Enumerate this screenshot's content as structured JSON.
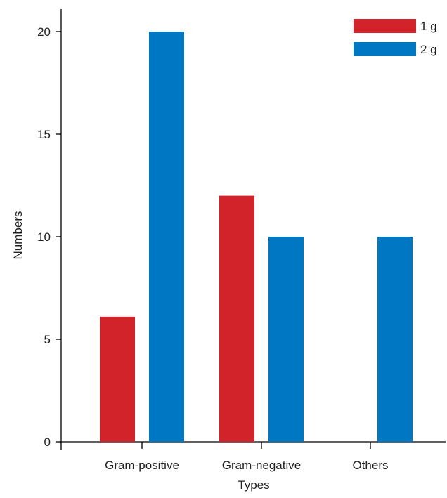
{
  "chart_data": {
    "type": "bar",
    "title": "",
    "xlabel": "Types",
    "ylabel": "Numbers",
    "categories": [
      "Gram-positive",
      "Gram-negative",
      "Others"
    ],
    "series": [
      {
        "name": "1 g",
        "color": "#d2232a",
        "values": [
          6.1,
          12,
          0
        ]
      },
      {
        "name": "2 g",
        "color": "#0077c2",
        "values": [
          20,
          10,
          10
        ]
      }
    ],
    "ylim": [
      0,
      20
    ],
    "yticks": [
      0,
      5,
      10,
      15,
      20
    ],
    "grid": false,
    "legend_position": "top-right"
  }
}
